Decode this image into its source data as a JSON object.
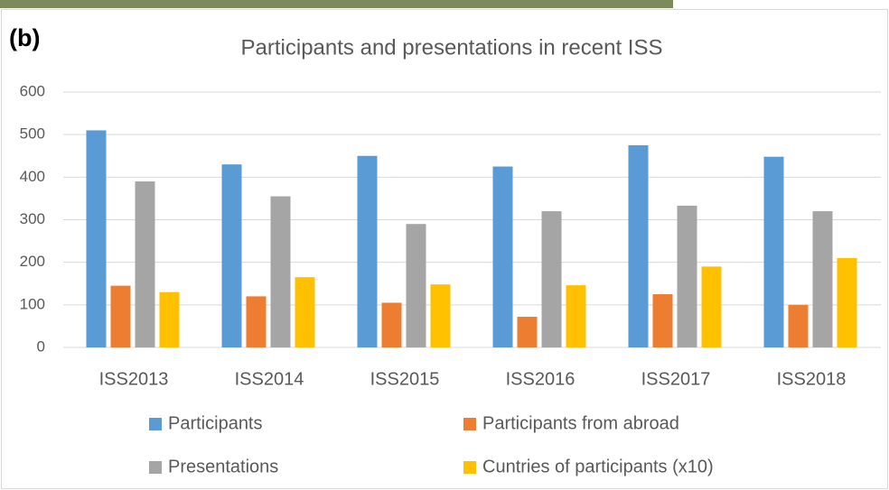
{
  "chart_data": {
    "type": "bar",
    "panel_label": "(b)",
    "title": "Participants and presentations in recent ISS",
    "categories": [
      "ISS2013",
      "ISS2014",
      "ISS2015",
      "ISS2016",
      "ISS2017",
      "ISS2018"
    ],
    "series": [
      {
        "name": "Participants",
        "color": "#5b9bd5",
        "values": [
          510,
          430,
          450,
          425,
          475,
          448
        ]
      },
      {
        "name": "Participants from abroad",
        "color": "#ed7d31",
        "values": [
          145,
          120,
          105,
          72,
          125,
          100
        ]
      },
      {
        "name": "Presentations",
        "color": "#a5a5a5",
        "values": [
          390,
          355,
          290,
          320,
          333,
          320
        ]
      },
      {
        "name": "Cuntries of participants (x10)",
        "color": "#ffc000",
        "values": [
          130,
          165,
          148,
          146,
          190,
          210
        ]
      }
    ],
    "ylim": [
      0,
      600
    ],
    "yticks": [
      0,
      100,
      200,
      300,
      400,
      500,
      600
    ],
    "grid": true
  }
}
